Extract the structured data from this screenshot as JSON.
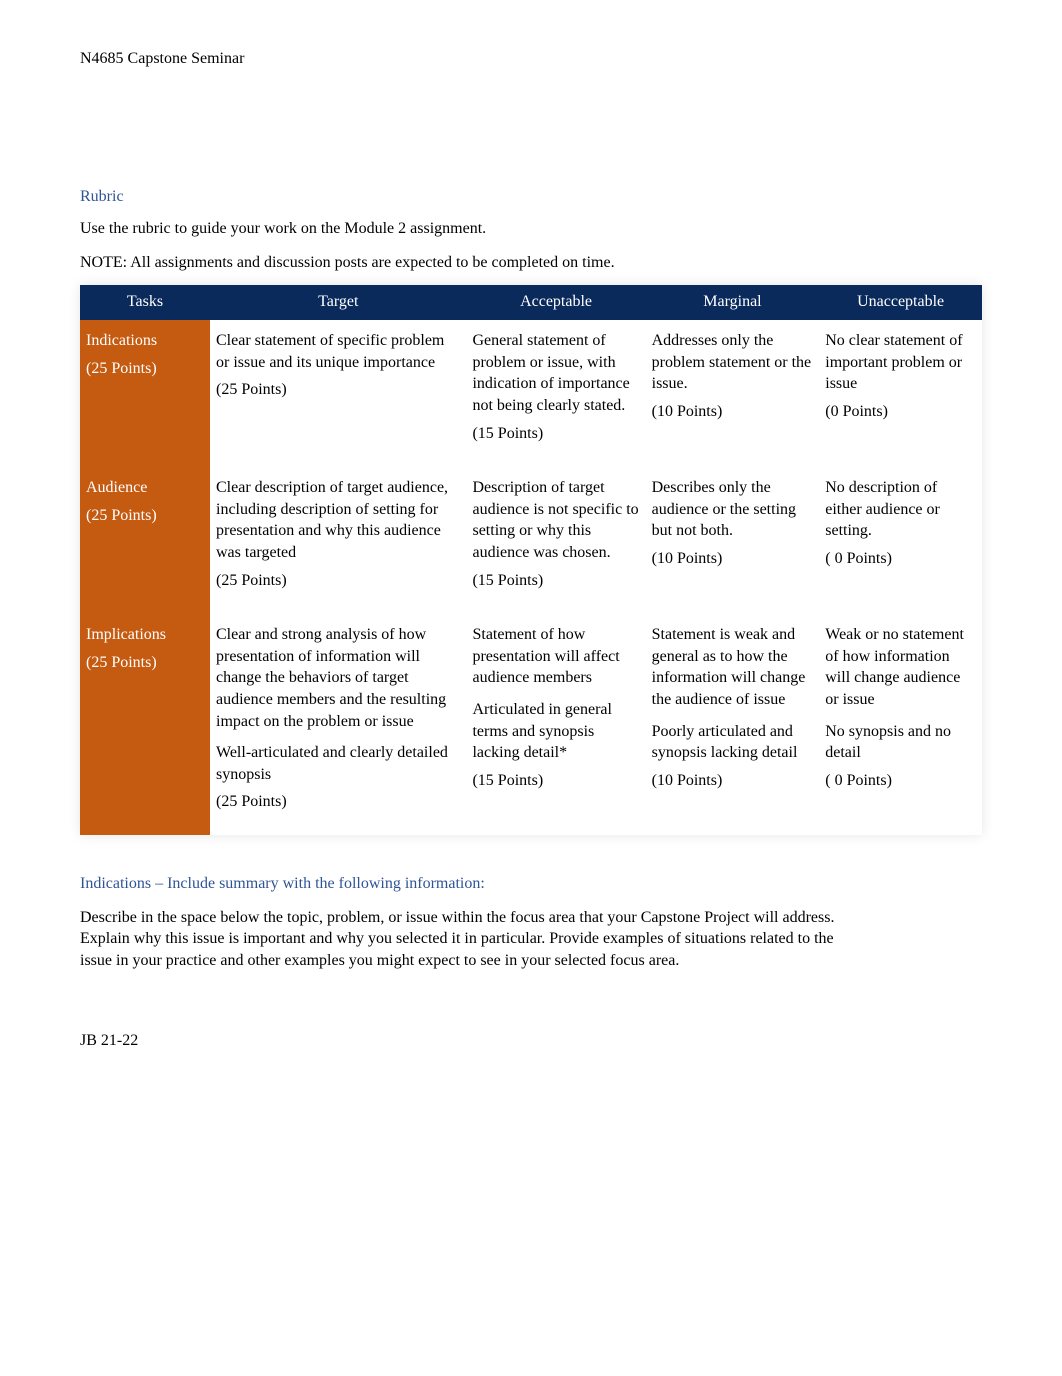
{
  "header": "N4685 Capstone Seminar",
  "rubric_heading": "Rubric",
  "rubric_p1": "Use the rubric to guide your work on the Module 2 assignment.",
  "rubric_p2": "NOTE: All assignments and discussion posts are expected to be completed on time.",
  "columns": {
    "tasks": "Tasks",
    "target": "Target",
    "acceptable": "Acceptable",
    "marginal": "Marginal",
    "unacceptable": "Unacceptable"
  },
  "rows": [
    {
      "task_label": "Indications",
      "task_points": "(25 Points)",
      "target": "Clear statement of specific problem or issue and its unique importance",
      "target_points": "(25 Points)",
      "acceptable": "General statement of problem or issue, with indication of importance not being clearly stated.",
      "acceptable_points": "(15 Points)",
      "marginal": "Addresses only the problem statement or the issue.",
      "marginal_points": "(10 Points)",
      "unacceptable": "No clear statement of important problem or issue",
      "unacceptable_points": "(0 Points)"
    },
    {
      "task_label": "Audience",
      "task_points": "(25 Points)",
      "target": "Clear description of target audience, including description of setting for presentation and why this audience was targeted",
      "target_points": "(25 Points)",
      "acceptable": "Description of target audience is not specific to setting or why this audience was chosen.",
      "acceptable_points": "(15 Points)",
      "marginal": "Describes only the audience or the setting but not both.",
      "marginal_points": "(10 Points)",
      "unacceptable": "No description of either audience or setting.",
      "unacceptable_points": "( 0 Points)"
    },
    {
      "task_label": "Implications",
      "task_points": "(25 Points)",
      "target": "Clear and strong analysis of how presentation of information will change the behaviors of target audience members and the resulting impact on the problem or issue\nWell-articulated and clearly detailed synopsis",
      "target_points": "(25 Points)",
      "acceptable": "Statement of how presentation will affect audience members\nArticulated in general terms and synopsis lacking detail*",
      "acceptable_points": "(15 Points)",
      "marginal": "Statement is weak and general as to how the information will change the audience of issue\nPoorly articulated and synopsis lacking detail",
      "marginal_points": "(10 Points)",
      "unacceptable": "Weak or no statement of how information will change audience or issue\nNo synopsis and no detail",
      "unacceptable_points": "( 0 Points)"
    }
  ],
  "indications_heading": "Indications – Include summary with the following information:",
  "indications_body": "Describe in the space below the topic, problem, or issue within the focus area that your Capstone Project will address. Explain why this issue is important and why you selected it in particular. Provide examples of situations related to the issue in your practice and other examples you might expect to see in your selected focus area.",
  "footer": "JB 21-22",
  "colors": {
    "header_bg": "#0a2a5c",
    "task_bg": "#c55a11",
    "heading_color": "#2f5496"
  }
}
